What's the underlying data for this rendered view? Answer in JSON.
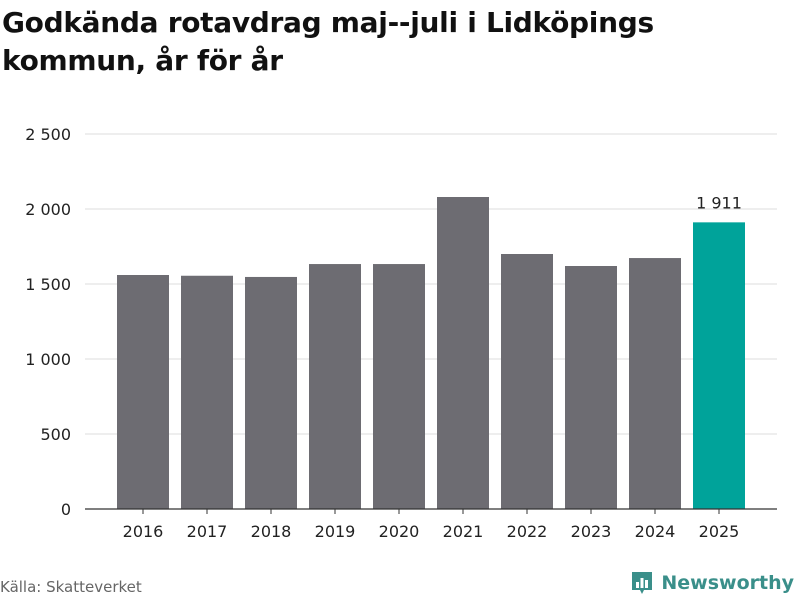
{
  "title": "Godkända rotavdrag maj--juli i Lidköpings kommun, år för år",
  "source": "Källa: Skatteverket",
  "brand": {
    "name": "Newsworthy",
    "icon": "newsworthy-logo-icon",
    "color": "#3a8f8a"
  },
  "colors": {
    "bar": "#6d6c72",
    "highlight": "#00a39a",
    "grid": "#dddddd",
    "axis_text": "#222222"
  },
  "chart_data": {
    "type": "bar",
    "title": "Godkända rotavdrag maj--juli i Lidköpings kommun, år för år",
    "xlabel": "",
    "ylabel": "",
    "categories": [
      "2016",
      "2017",
      "2018",
      "2019",
      "2020",
      "2021",
      "2022",
      "2023",
      "2024",
      "2025"
    ],
    "values": [
      1560,
      1555,
      1547,
      1633,
      1633,
      2080,
      1700,
      1620,
      1673,
      1911
    ],
    "highlight_index": 9,
    "data_labels": [
      {
        "index": 9,
        "text": "1 911"
      }
    ],
    "ylim": [
      0,
      2500
    ],
    "yticks": [
      0,
      500,
      1000,
      1500,
      2000,
      2500
    ],
    "ytick_labels": [
      "0",
      "500",
      "1 000",
      "1 500",
      "2 000",
      "2 500"
    ],
    "grid": true,
    "legend": "none"
  }
}
